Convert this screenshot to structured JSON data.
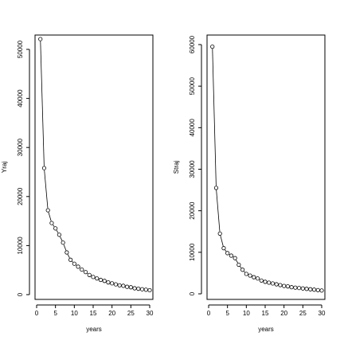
{
  "chart_data": [
    {
      "type": "scatter",
      "series_style": "line-connected points (open circles)",
      "xlabel": "years",
      "ylabel": "Yraj",
      "xlim": [
        0,
        30
      ],
      "ylim": [
        0,
        52000
      ],
      "xticks": [
        "0",
        "5",
        "10",
        "15",
        "20",
        "25",
        "30"
      ],
      "yticks": [
        "0",
        "10000",
        "20000",
        "30000",
        "40000",
        "50000"
      ],
      "grid": false,
      "x": [
        1,
        2,
        3,
        4,
        5,
        6,
        7,
        8,
        9,
        10,
        11,
        12,
        13,
        14,
        15,
        16,
        17,
        18,
        19,
        20,
        21,
        22,
        23,
        24,
        25,
        26,
        27,
        28,
        29,
        30
      ],
      "y": [
        52100,
        25800,
        17200,
        14600,
        13500,
        12200,
        10600,
        8600,
        7100,
        6300,
        5700,
        5100,
        4600,
        4000,
        3600,
        3300,
        3000,
        2800,
        2500,
        2300,
        2100,
        1900,
        1800,
        1600,
        1500,
        1300,
        1200,
        1100,
        1000,
        900
      ]
    },
    {
      "type": "scatter",
      "series_style": "line-connected points (open circles)",
      "xlabel": "years",
      "ylabel": "Straj",
      "xlim": [
        0,
        30
      ],
      "ylim": [
        0,
        60000
      ],
      "xticks": [
        "0",
        "5",
        "10",
        "15",
        "20",
        "25",
        "30"
      ],
      "yticks": [
        "0",
        "10000",
        "20000",
        "30000",
        "40000",
        "50000",
        "60000"
      ],
      "grid": false,
      "x": [
        1,
        2,
        3,
        4,
        5,
        6,
        7,
        8,
        9,
        10,
        11,
        12,
        13,
        14,
        15,
        16,
        17,
        18,
        19,
        20,
        21,
        22,
        23,
        24,
        25,
        26,
        27,
        28,
        29,
        30
      ],
      "y": [
        59500,
        25500,
        14500,
        11000,
        9800,
        9200,
        8600,
        7000,
        5800,
        4800,
        4400,
        4000,
        3700,
        3200,
        2900,
        2700,
        2500,
        2300,
        2100,
        1900,
        1800,
        1600,
        1500,
        1400,
        1300,
        1200,
        1100,
        1000,
        900,
        800
      ]
    }
  ]
}
